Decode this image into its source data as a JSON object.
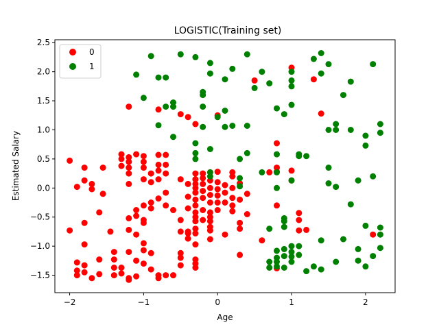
{
  "chart_data": {
    "type": "scatter",
    "title": "LOGISTIC(Training set)",
    "xlabel": "Age",
    "ylabel": "Estimated Salary",
    "xlim": [
      -2.2,
      2.4
    ],
    "ylim": [
      -1.8,
      2.55
    ],
    "xticks": [
      -2,
      -1,
      0,
      1,
      2
    ],
    "yticks": [
      -1.5,
      -1.0,
      -0.5,
      0.0,
      0.5,
      1.0,
      1.5,
      2.0,
      2.5
    ],
    "xtick_labels": [
      "−2",
      "−1",
      "0",
      "1",
      "2"
    ],
    "ytick_labels": [
      "−1.5",
      "−1.0",
      "−0.5",
      "0.0",
      "0.5",
      "1.0",
      "1.5",
      "2.0",
      "2.5"
    ],
    "grid": false,
    "legend_position": "top-left",
    "series": [
      {
        "name": "0",
        "color": "#ff0000",
        "points": [
          [
            -2.0,
            0.47
          ],
          [
            -2.0,
            -0.73
          ],
          [
            -1.9,
            0.02
          ],
          [
            -1.9,
            -1.28
          ],
          [
            -1.9,
            -1.42
          ],
          [
            -1.9,
            -1.5
          ],
          [
            -1.8,
            0.35
          ],
          [
            -1.8,
            0.13
          ],
          [
            -1.8,
            -0.6
          ],
          [
            -1.8,
            -0.97
          ],
          [
            -1.8,
            -1.33
          ],
          [
            -1.8,
            -1.45
          ],
          [
            -1.7,
            0.07
          ],
          [
            -1.7,
            -0.02
          ],
          [
            -1.7,
            -1.55
          ],
          [
            -1.6,
            -0.42
          ],
          [
            -1.6,
            -1.23
          ],
          [
            -1.6,
            -1.48
          ],
          [
            -1.55,
            0.35
          ],
          [
            -1.55,
            -0.1
          ],
          [
            -1.45,
            -0.75
          ],
          [
            -1.4,
            -1.1
          ],
          [
            -1.4,
            -1.23
          ],
          [
            -1.4,
            -1.37
          ],
          [
            -1.4,
            -1.5
          ],
          [
            -1.3,
            0.58
          ],
          [
            -1.3,
            0.5
          ],
          [
            -1.3,
            0.38
          ],
          [
            -1.3,
            -1.37
          ],
          [
            -1.3,
            -1.47
          ],
          [
            -1.2,
            0.53
          ],
          [
            -1.2,
            0.45
          ],
          [
            -1.2,
            0.35
          ],
          [
            -1.2,
            0.25
          ],
          [
            -1.2,
            0.07
          ],
          [
            -1.2,
            -0.52
          ],
          [
            -1.2,
            -0.72
          ],
          [
            -1.2,
            -1.1
          ],
          [
            -1.2,
            -1.55
          ],
          [
            -1.2,
            -1.58
          ],
          [
            -1.2,
            1.4
          ],
          [
            -1.1,
            0.58
          ],
          [
            -1.1,
            -0.38
          ],
          [
            -1.1,
            -0.48
          ],
          [
            -1.1,
            -0.8
          ],
          [
            -1.1,
            -1.25
          ],
          [
            -1.1,
            -1.52
          ],
          [
            -1.0,
            0.55
          ],
          [
            -1.0,
            0.45
          ],
          [
            -1.0,
            0.35
          ],
          [
            -1.0,
            0.15
          ],
          [
            -1.0,
            -0.3
          ],
          [
            -1.0,
            -0.55
          ],
          [
            -1.0,
            -0.6
          ],
          [
            -1.0,
            -0.95
          ],
          [
            -1.0,
            -1.07
          ],
          [
            -1.0,
            -1.3
          ],
          [
            -0.9,
            0.25
          ],
          [
            -0.9,
            0.1
          ],
          [
            -0.9,
            -0.25
          ],
          [
            -0.9,
            -0.35
          ],
          [
            -0.9,
            -1.12
          ],
          [
            -0.9,
            -1.4
          ],
          [
            -0.8,
            1.35
          ],
          [
            -0.8,
            0.57
          ],
          [
            -0.8,
            0.4
          ],
          [
            -0.8,
            0.3
          ],
          [
            -0.8,
            0.15
          ],
          [
            -0.8,
            -0.18
          ],
          [
            -0.8,
            -1.5
          ],
          [
            -0.8,
            -1.55
          ],
          [
            -0.7,
            0.57
          ],
          [
            -0.7,
            0.4
          ],
          [
            -0.7,
            0.25
          ],
          [
            -0.7,
            -0.08
          ],
          [
            -0.7,
            -0.3
          ],
          [
            -0.7,
            -1.5
          ],
          [
            -0.6,
            -0.38
          ],
          [
            -0.6,
            -1.5
          ],
          [
            -0.5,
            1.27
          ],
          [
            -0.5,
            0.15
          ],
          [
            -0.5,
            -0.55
          ],
          [
            -0.5,
            -0.75
          ],
          [
            -0.5,
            -1.12
          ],
          [
            -0.5,
            -1.2
          ],
          [
            -0.5,
            -1.33
          ],
          [
            -0.4,
            1.22
          ],
          [
            -0.4,
            0.07
          ],
          [
            -0.4,
            -0.15
          ],
          [
            -0.4,
            -0.35
          ],
          [
            -0.4,
            -0.75
          ],
          [
            -0.4,
            -0.78
          ],
          [
            -0.4,
            -0.87
          ],
          [
            -0.3,
            1.1
          ],
          [
            -0.3,
            0.25
          ],
          [
            -0.3,
            0.15
          ],
          [
            -0.3,
            0.07
          ],
          [
            -0.3,
            0.0
          ],
          [
            -0.3,
            -0.08
          ],
          [
            -0.3,
            -0.2
          ],
          [
            -0.3,
            -0.3
          ],
          [
            -0.3,
            -0.42
          ],
          [
            -0.3,
            -0.5
          ],
          [
            -0.3,
            -0.57
          ],
          [
            -0.3,
            -0.7
          ],
          [
            -0.3,
            -0.78
          ],
          [
            -0.3,
            -0.97
          ],
          [
            -0.3,
            -1.23
          ],
          [
            -0.3,
            -1.3
          ],
          [
            -0.3,
            -1.37
          ],
          [
            -0.2,
            0.25
          ],
          [
            -0.2,
            0.17
          ],
          [
            -0.2,
            0.07
          ],
          [
            -0.2,
            -0.05
          ],
          [
            -0.2,
            -0.17
          ],
          [
            -0.2,
            -0.38
          ],
          [
            -0.2,
            -0.55
          ],
          [
            -0.1,
            0.27
          ],
          [
            -0.1,
            0.13
          ],
          [
            -0.1,
            0.0
          ],
          [
            -0.1,
            -0.12
          ],
          [
            -0.1,
            -0.25
          ],
          [
            -0.1,
            -0.42
          ],
          [
            -0.1,
            -0.5
          ],
          [
            -0.1,
            -0.57
          ],
          [
            -0.1,
            -0.67
          ],
          [
            -0.1,
            -0.73
          ],
          [
            -0.1,
            -0.88
          ],
          [
            0.0,
            1.25
          ],
          [
            0.0,
            0.28
          ],
          [
            0.0,
            0.1
          ],
          [
            0.0,
            -0.02
          ],
          [
            0.0,
            -0.13
          ],
          [
            0.0,
            -0.25
          ],
          [
            0.0,
            -0.38
          ],
          [
            0.1,
            0.05
          ],
          [
            0.1,
            -0.08
          ],
          [
            0.1,
            -0.25
          ],
          [
            0.1,
            -0.8
          ],
          [
            0.2,
            0.27
          ],
          [
            0.2,
            0.2
          ],
          [
            0.2,
            0.0
          ],
          [
            0.2,
            -0.17
          ],
          [
            0.2,
            -0.3
          ],
          [
            0.2,
            -0.4
          ],
          [
            0.3,
            0.08
          ],
          [
            0.3,
            -0.2
          ],
          [
            0.3,
            -0.6
          ],
          [
            0.3,
            -0.7
          ],
          [
            0.3,
            -1.15
          ],
          [
            0.4,
            -0.1
          ],
          [
            0.4,
            -0.45
          ],
          [
            0.5,
            1.85
          ],
          [
            0.6,
            -0.9
          ],
          [
            0.7,
            0.27
          ],
          [
            0.8,
            0.77
          ],
          [
            0.8,
            0.35
          ],
          [
            0.8,
            0.28
          ],
          [
            0.8,
            -0.3
          ],
          [
            0.8,
            -1.38
          ],
          [
            1.0,
            2.07
          ],
          [
            1.0,
            0.3
          ],
          [
            1.0,
            0.13
          ],
          [
            1.1,
            -0.43
          ],
          [
            1.1,
            -0.55
          ],
          [
            1.1,
            -0.73
          ],
          [
            1.2,
            -0.72
          ],
          [
            1.3,
            1.87
          ],
          [
            1.4,
            1.28
          ],
          [
            2.1,
            -0.8
          ]
        ]
      },
      {
        "name": "1",
        "color": "#008000",
        "points": [
          [
            -1.1,
            1.95
          ],
          [
            -1.0,
            1.55
          ],
          [
            -0.9,
            2.27
          ],
          [
            -0.8,
            1.9
          ],
          [
            -0.8,
            1.08
          ],
          [
            -0.7,
            1.9
          ],
          [
            -0.7,
            1.4
          ],
          [
            -0.6,
            1.47
          ],
          [
            -0.6,
            1.4
          ],
          [
            -0.6,
            0.88
          ],
          [
            -0.5,
            2.3
          ],
          [
            -0.3,
            2.25
          ],
          [
            -0.3,
            0.77
          ],
          [
            -0.3,
            0.6
          ],
          [
            -0.3,
            0.5
          ],
          [
            -0.2,
            1.65
          ],
          [
            -0.2,
            1.6
          ],
          [
            -0.2,
            1.4
          ],
          [
            -0.2,
            1.05
          ],
          [
            -0.1,
            2.15
          ],
          [
            -0.1,
            1.97
          ],
          [
            -0.1,
            0.67
          ],
          [
            -0.1,
            0.27
          ],
          [
            -0.1,
            0.2
          ],
          [
            0.0,
            1.22
          ],
          [
            0.1,
            1.87
          ],
          [
            0.1,
            1.33
          ],
          [
            0.1,
            1.05
          ],
          [
            0.2,
            2.05
          ],
          [
            0.2,
            1.07
          ],
          [
            0.3,
            0.5
          ],
          [
            0.3,
            0.17
          ],
          [
            0.3,
            0.03
          ],
          [
            0.4,
            2.3
          ],
          [
            0.4,
            1.07
          ],
          [
            0.4,
            0.6
          ],
          [
            0.5,
            1.72
          ],
          [
            0.6,
            2.0
          ],
          [
            0.6,
            0.27
          ],
          [
            0.7,
            1.8
          ],
          [
            0.7,
            -0.7
          ],
          [
            0.7,
            -1.27
          ],
          [
            0.7,
            -1.37
          ],
          [
            0.8,
            1.37
          ],
          [
            0.8,
            0.58
          ],
          [
            0.8,
            0.27
          ],
          [
            0.8,
            0.0
          ],
          [
            0.8,
            -1.08
          ],
          [
            0.8,
            -1.2
          ],
          [
            0.8,
            -1.27
          ],
          [
            0.8,
            -1.35
          ],
          [
            0.9,
            1.27
          ],
          [
            0.9,
            -0.52
          ],
          [
            0.9,
            -0.57
          ],
          [
            0.9,
            -0.67
          ],
          [
            0.9,
            -1.05
          ],
          [
            0.9,
            -1.17
          ],
          [
            0.9,
            -1.37
          ],
          [
            1.0,
            2.0
          ],
          [
            1.0,
            1.85
          ],
          [
            1.0,
            1.75
          ],
          [
            1.0,
            1.43
          ],
          [
            1.0,
            0.13
          ],
          [
            1.0,
            -1.0
          ],
          [
            1.0,
            -1.1
          ],
          [
            1.0,
            -1.18
          ],
          [
            1.0,
            -1.27
          ],
          [
            1.1,
            0.58
          ],
          [
            1.1,
            0.55
          ],
          [
            1.1,
            -1.0
          ],
          [
            1.1,
            -1.15
          ],
          [
            1.2,
            0.55
          ],
          [
            1.2,
            -1.43
          ],
          [
            1.3,
            2.22
          ],
          [
            1.3,
            -1.35
          ],
          [
            1.4,
            2.32
          ],
          [
            1.4,
            1.97
          ],
          [
            1.4,
            -0.9
          ],
          [
            1.4,
            -1.4
          ],
          [
            1.5,
            2.13
          ],
          [
            1.5,
            1.0
          ],
          [
            1.5,
            0.35
          ],
          [
            1.5,
            0.08
          ],
          [
            1.6,
            1.1
          ],
          [
            1.6,
            1.0
          ],
          [
            1.6,
            0.02
          ],
          [
            1.6,
            -1.27
          ],
          [
            1.7,
            1.6
          ],
          [
            1.7,
            -0.88
          ],
          [
            1.8,
            1.83
          ],
          [
            1.8,
            1.0
          ],
          [
            1.8,
            -0.28
          ],
          [
            1.9,
            0.13
          ],
          [
            1.9,
            -1.05
          ],
          [
            1.9,
            -1.25
          ],
          [
            2.0,
            0.9
          ],
          [
            2.0,
            0.73
          ],
          [
            2.0,
            -0.65
          ],
          [
            2.0,
            -1.35
          ],
          [
            2.1,
            2.13
          ],
          [
            2.1,
            0.2
          ],
          [
            2.1,
            -1.17
          ],
          [
            2.2,
            1.1
          ],
          [
            2.2,
            0.95
          ],
          [
            2.2,
            -0.68
          ],
          [
            2.2,
            -0.8
          ],
          [
            2.2,
            -1.03
          ]
        ]
      }
    ]
  }
}
